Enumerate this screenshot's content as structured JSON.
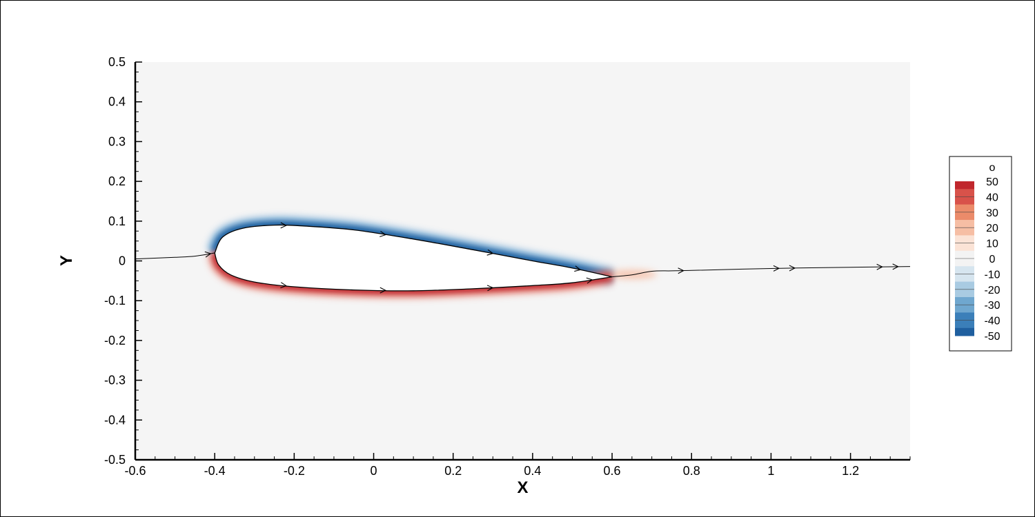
{
  "chart_data": {
    "type": "contour",
    "xlabel": "X",
    "ylabel": "Y",
    "xlim": [
      -0.6,
      1.35
    ],
    "ylim": [
      -0.5,
      0.5
    ],
    "xticks": [
      "-0.6",
      "-0.4",
      "-0.2",
      "0",
      "0.2",
      "0.4",
      "0.6",
      "0.8",
      "1",
      "1.2"
    ],
    "yticks": [
      "0.5",
      "0.4",
      "0.3",
      "0.2",
      "0.1",
      "0",
      "-0.1",
      "-0.2",
      "-0.3",
      "-0.4",
      "-0.5"
    ],
    "airfoil": {
      "leading_edge": [
        -0.4,
        0.02
      ],
      "trailing_edge": [
        0.6,
        -0.04
      ],
      "upper_surface": [
        [
          -0.4,
          0.02
        ],
        [
          -0.38,
          0.06
        ],
        [
          -0.33,
          0.082
        ],
        [
          -0.25,
          0.09
        ],
        [
          -0.18,
          0.088
        ],
        [
          -0.05,
          0.078
        ],
        [
          0.1,
          0.055
        ],
        [
          0.25,
          0.028
        ],
        [
          0.4,
          0.0
        ],
        [
          0.5,
          -0.018
        ],
        [
          0.6,
          -0.04
        ]
      ],
      "lower_surface": [
        [
          -0.4,
          0.02
        ],
        [
          -0.39,
          -0.01
        ],
        [
          -0.36,
          -0.035
        ],
        [
          -0.3,
          -0.053
        ],
        [
          -0.2,
          -0.065
        ],
        [
          -0.05,
          -0.073
        ],
        [
          0.1,
          -0.075
        ],
        [
          0.25,
          -0.07
        ],
        [
          0.4,
          -0.062
        ],
        [
          0.5,
          -0.055
        ],
        [
          0.6,
          -0.04
        ]
      ]
    },
    "streamlines": [
      {
        "points": [
          [
            -0.6,
            0.005
          ],
          [
            -0.5,
            0.009
          ],
          [
            -0.45,
            0.012
          ],
          [
            -0.4,
            0.02
          ]
        ]
      },
      {
        "points": [
          [
            0.6,
            -0.04
          ],
          [
            0.65,
            -0.035
          ],
          [
            0.7,
            -0.026
          ],
          [
            0.75,
            -0.025
          ],
          [
            0.8,
            -0.024
          ],
          [
            1.0,
            -0.019
          ],
          [
            1.2,
            -0.016
          ],
          [
            1.35,
            -0.014
          ]
        ]
      }
    ],
    "legend": {
      "title": "o",
      "levels": [
        "50",
        "40",
        "30",
        "20",
        "10",
        "0",
        "-10",
        "-20",
        "-30",
        "-40",
        "-50"
      ],
      "colors": [
        "#c0272d",
        "#d8524a",
        "#eb8b6a",
        "#f6bea4",
        "#fbe3d6",
        "#f3f3f3",
        "#d6e5ef",
        "#a9cbe2",
        "#6fa7cf",
        "#3b7fb9",
        "#1f5f9f"
      ],
      "placement": "right"
    },
    "background": "#f5f5f5"
  }
}
